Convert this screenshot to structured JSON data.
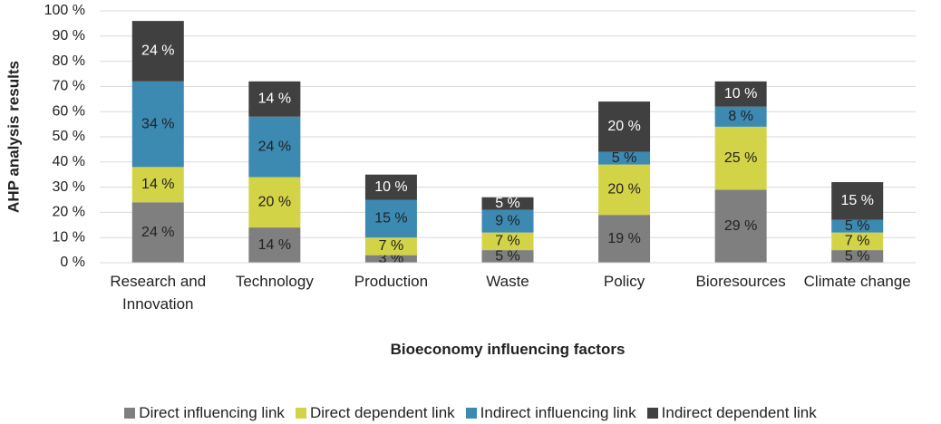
{
  "chart_data": {
    "type": "stacked_bar",
    "x_label": "Bioeconomy influencing factors",
    "y_label": "AHP analysis results",
    "categories": [
      "Research and Innovation",
      "Technology",
      "Production",
      "Waste",
      "Policy",
      "Bioresources",
      "Climate change"
    ],
    "series": [
      {
        "name": "Direct influencing link",
        "color": "#7f7f7f",
        "values": [
          24,
          14,
          3,
          5,
          19,
          29,
          5
        ],
        "value_labels": [
          "24 %",
          "14 %",
          "3 %",
          "5 %",
          "19 %",
          "29 %",
          "5 %"
        ]
      },
      {
        "name": "Direct dependent link",
        "color": "#d3d347",
        "values": [
          14,
          20,
          7,
          7,
          20,
          25,
          7
        ],
        "value_labels": [
          "14 %",
          "20 %",
          "7 %",
          "7 %",
          "20 %",
          "25 %",
          "7 %"
        ]
      },
      {
        "name": "Indirect influencing link",
        "color": "#3c8ab2",
        "values": [
          34,
          24,
          15,
          9,
          5,
          8,
          5
        ],
        "value_labels": [
          "34 %",
          "24 %",
          "15 %",
          "9 %",
          "5 %",
          "8 %",
          "5 %"
        ]
      },
      {
        "name": "Indirect dependent link",
        "color": "#404040",
        "values": [
          24,
          14,
          10,
          5,
          20,
          10,
          15
        ],
        "value_labels": [
          "24 %",
          "14 %",
          "10 %",
          "5 %",
          "20 %",
          "10 %",
          "15 %"
        ]
      }
    ],
    "ylim": [
      0,
      100
    ],
    "yticks": [
      {
        "value": 0,
        "label": "0 %"
      },
      {
        "value": 10,
        "label": "10 %"
      },
      {
        "value": 20,
        "label": "20 %"
      },
      {
        "value": 30,
        "label": "30 %"
      },
      {
        "value": 40,
        "label": "40 %"
      },
      {
        "value": 50,
        "label": "50 %"
      },
      {
        "value": 60,
        "label": "60 %"
      },
      {
        "value": 70,
        "label": "70 %"
      },
      {
        "value": 80,
        "label": "80 %"
      },
      {
        "value": 90,
        "label": "90 %"
      },
      {
        "value": 100,
        "label": "100 %"
      }
    ],
    "grid": true,
    "legend": "bottom"
  }
}
